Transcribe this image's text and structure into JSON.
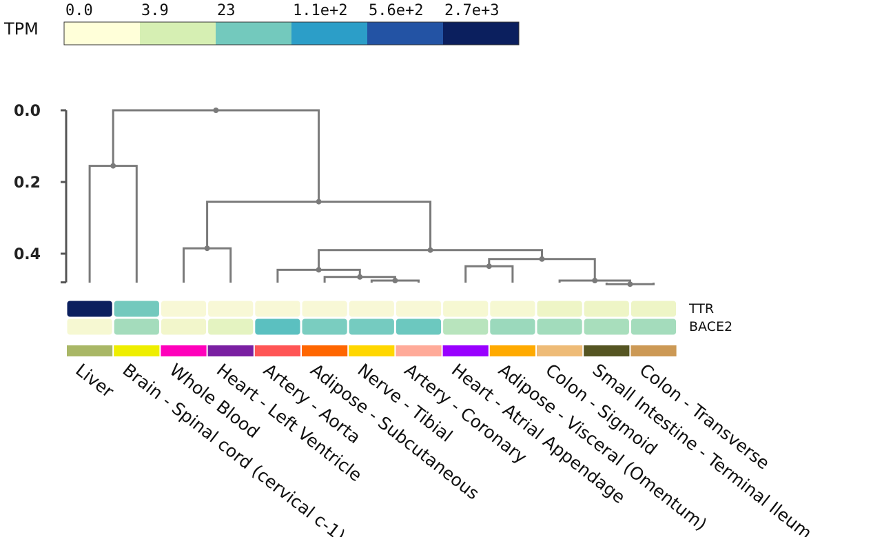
{
  "chart_data": {
    "type": "heatmap",
    "colorbar": {
      "title": "TPM",
      "tick_labels": [
        "0.0",
        "3.9",
        "23",
        "1.1e+2",
        "5.6e+2",
        "2.7e+3"
      ],
      "colors": [
        "#ffffd9",
        "#d6efb3",
        "#73c9bd",
        "#2c9ec8",
        "#2353a4",
        "#0b1f5e"
      ]
    },
    "dendrogram_axis": {
      "tick_labels": [
        "0.0",
        "0.2",
        "0.4"
      ],
      "ticks": [
        0.0,
        0.2,
        0.4
      ],
      "range": [
        0.0,
        0.48
      ]
    },
    "genes": [
      "TTR",
      "BACE2"
    ],
    "tissues": [
      {
        "name": "Liver",
        "color": "#a9b766"
      },
      {
        "name": "Brain - Spinal cord (cervical c-1)",
        "color": "#eeee00"
      },
      {
        "name": "Whole Blood",
        "color": "#ff00bb"
      },
      {
        "name": "Heart - Left Ventricle",
        "color": "#7a1fa2"
      },
      {
        "name": "Artery - Aorta",
        "color": "#ff5555"
      },
      {
        "name": "Adipose - Subcutaneous",
        "color": "#ff6600"
      },
      {
        "name": "Nerve - Tibial",
        "color": "#ffd700"
      },
      {
        "name": "Artery - Coronary",
        "color": "#ffaa99"
      },
      {
        "name": "Heart - Atrial Appendage",
        "color": "#9900ff"
      },
      {
        "name": "Adipose - Visceral (Omentum)",
        "color": "#ffaa00"
      },
      {
        "name": "Colon - Sigmoid",
        "color": "#eebb77"
      },
      {
        "name": "Small Intestine - Terminal Ileum",
        "color": "#555522"
      },
      {
        "name": "Colon - Transverse",
        "color": "#cc9955"
      }
    ],
    "cell_colors": [
      [
        "#0b1f5e",
        "#73c9bd",
        "#f8f8d6",
        "#f8f8d6",
        "#f8f8d6",
        "#f8f8d6",
        "#f8f8d6",
        "#f8f8d6",
        "#f6f8d2",
        "#f6f8d2",
        "#eef5c6",
        "#eef5c6",
        "#eef5c6"
      ],
      [
        "#f6f8d2",
        "#a4dcbc",
        "#f2f6cb",
        "#e4f3c1",
        "#5bc0c0",
        "#7acdc0",
        "#75cbc0",
        "#6cc8bf",
        "#b8e4bd",
        "#9bd9bc",
        "#a2dcbc",
        "#a8debc",
        "#a4dcbc"
      ]
    ],
    "dendrogram": {
      "nodes": [
        {
          "id": "n_liver_brain",
          "left": "leaf:0",
          "right": "leaf:1",
          "height": 0.155
        },
        {
          "id": "n_blood_heart",
          "left": "leaf:2",
          "right": "leaf:3",
          "height": 0.385
        },
        {
          "id": "n_nerve_coronary",
          "left": "leaf:6",
          "right": "leaf:7",
          "height": 0.475
        },
        {
          "id": "n_adipose_nc",
          "left": "leaf:5",
          "right": "node:n_nerve_coronary",
          "height": 0.465
        },
        {
          "id": "n_aorta_group",
          "left": "leaf:4",
          "right": "node:n_adipose_nc",
          "height": 0.445
        },
        {
          "id": "n_heartatrial_visceral",
          "left": "leaf:8",
          "right": "leaf:9",
          "height": 0.435
        },
        {
          "id": "n_ileum_transverse",
          "left": "leaf:11",
          "right": "leaf:12",
          "height": 0.485
        },
        {
          "id": "n_sigmoid_group",
          "left": "leaf:10",
          "right": "node:n_ileum_transverse",
          "height": 0.475
        },
        {
          "id": "n_visc_colon",
          "left": "node:n_heartatrial_visceral",
          "right": "node:n_sigmoid_group",
          "height": 0.415
        },
        {
          "id": "n_mid",
          "left": "node:n_aorta_group",
          "right": "node:n_visc_colon",
          "height": 0.39
        },
        {
          "id": "n_right",
          "left": "node:n_blood_heart",
          "right": "node:n_mid",
          "height": 0.255
        },
        {
          "id": "n_root",
          "left": "node:n_liver_brain",
          "right": "node:n_right",
          "height": 0.0
        }
      ]
    }
  }
}
